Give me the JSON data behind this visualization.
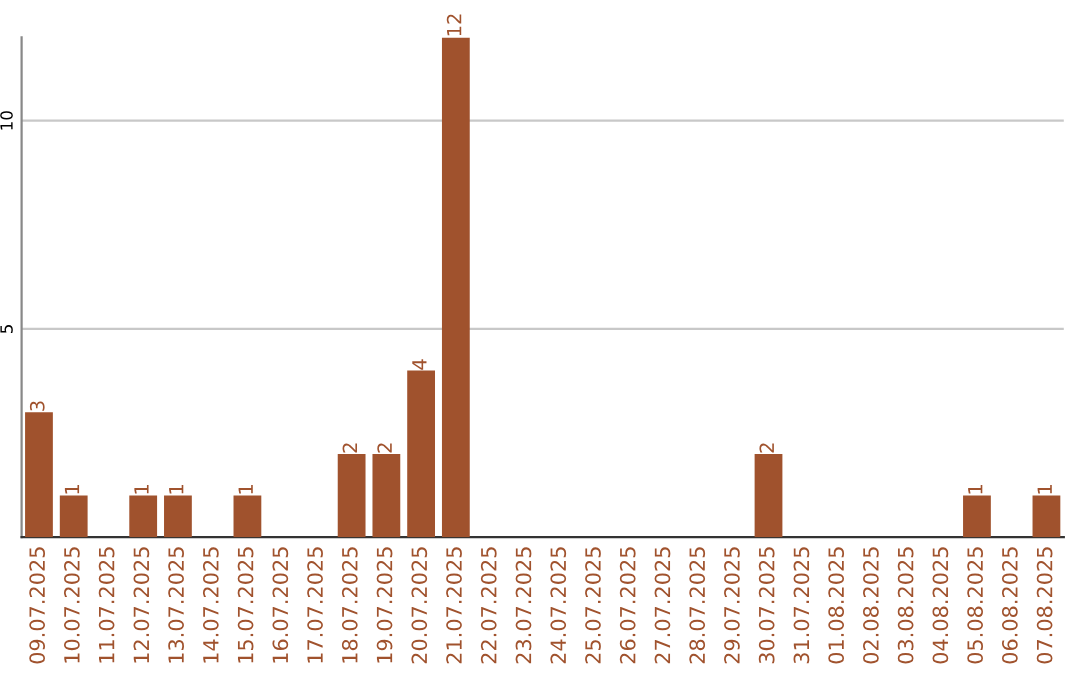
{
  "chart_data": {
    "type": "bar",
    "categories": [
      "09.07.2025",
      "10.07.2025",
      "11.07.2025",
      "12.07.2025",
      "13.07.2025",
      "14.07.2025",
      "15.07.2025",
      "16.07.2025",
      "17.07.2025",
      "18.07.2025",
      "19.07.2025",
      "20.07.2025",
      "21.07.2025",
      "22.07.2025",
      "23.07.2025",
      "24.07.2025",
      "25.07.2025",
      "26.07.2025",
      "27.07.2025",
      "28.07.2025",
      "29.07.2025",
      "30.07.2025",
      "31.07.2025",
      "01.08.2025",
      "02.08.2025",
      "03.08.2025",
      "04.08.2025",
      "05.08.2025",
      "06.08.2025",
      "07.08.2025"
    ],
    "values": [
      3,
      1,
      0,
      1,
      1,
      0,
      1,
      0,
      0,
      2,
      2,
      4,
      12,
      0,
      0,
      0,
      0,
      0,
      0,
      0,
      0,
      2,
      0,
      0,
      0,
      0,
      0,
      1,
      0,
      1
    ],
    "value_labels": [
      "3",
      "1",
      null,
      "1",
      "1",
      null,
      "1",
      null,
      null,
      "2",
      "2",
      "4",
      "12",
      null,
      null,
      null,
      null,
      null,
      null,
      null,
      null,
      "2",
      null,
      null,
      null,
      null,
      null,
      "1",
      null,
      "1"
    ],
    "color": "#a0522d",
    "ylim": [
      0,
      12
    ],
    "yticks": [
      5,
      10
    ],
    "grid": "y",
    "legend": false
  }
}
